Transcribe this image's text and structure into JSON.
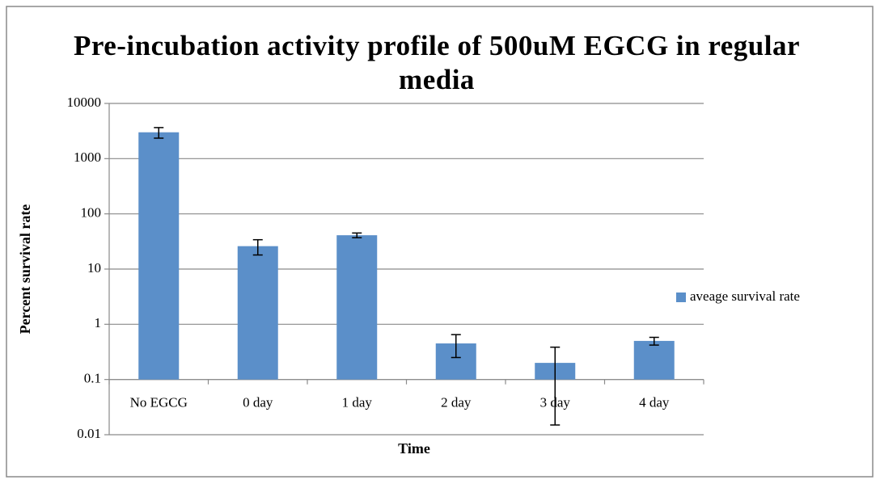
{
  "chart_data": {
    "type": "bar",
    "title": "Pre-incubation activity profile of 500uM EGCG in regular media",
    "x_label": "Time",
    "y_label": "Percent survival rate",
    "categories": [
      "No EGCG",
      "0 day",
      "1 day",
      "2 day",
      "3 day",
      "4 day"
    ],
    "series": [
      {
        "name": "aveage survival rate",
        "color": "#5b8fc9",
        "values": [
          3000,
          26,
          41,
          0.45,
          0.2,
          0.5
        ],
        "errors": [
          650,
          8,
          4,
          0.2,
          0.185,
          0.08
        ]
      }
    ],
    "log_scale": true,
    "ylim": [
      0.01,
      10000
    ],
    "yticks": [
      0.01,
      0.1,
      1,
      10,
      100,
      1000,
      10000
    ],
    "baseline": 0.1,
    "grid": true,
    "legend": "right"
  }
}
